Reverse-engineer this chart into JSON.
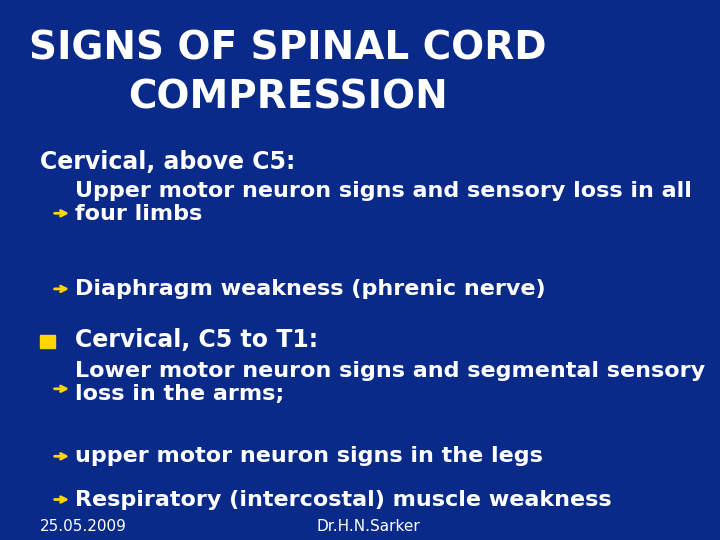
{
  "title_line1": "SIGNS OF SPINAL CORD",
  "title_line2": "COMPRESSION",
  "bg_color": "#0a2a8a",
  "title_color": "#ffffff",
  "text_color": "#ffffff",
  "bullet_color": "#ffd700",
  "square_color": "#ffd700",
  "section1_header": "Cervical, above C5:",
  "section1_bullets": [
    "Upper motor neuron signs and sensory loss in all\nfour limbs",
    "Diaphragm weakness (phrenic nerve)"
  ],
  "section2_header": "Cervical, C5 to T1:",
  "section2_bullets": [
    "Lower motor neuron signs and segmental sensory\nloss in the arms;",
    "upper motor neuron signs in the legs",
    "Respiratory (intercostal) muscle weakness"
  ],
  "footer_left": "25.05.2009",
  "footer_right": "Dr.H.N.Sarker",
  "title_fontsize": 28,
  "header_fontsize": 17,
  "bullet_fontsize": 16,
  "footer_fontsize": 11
}
